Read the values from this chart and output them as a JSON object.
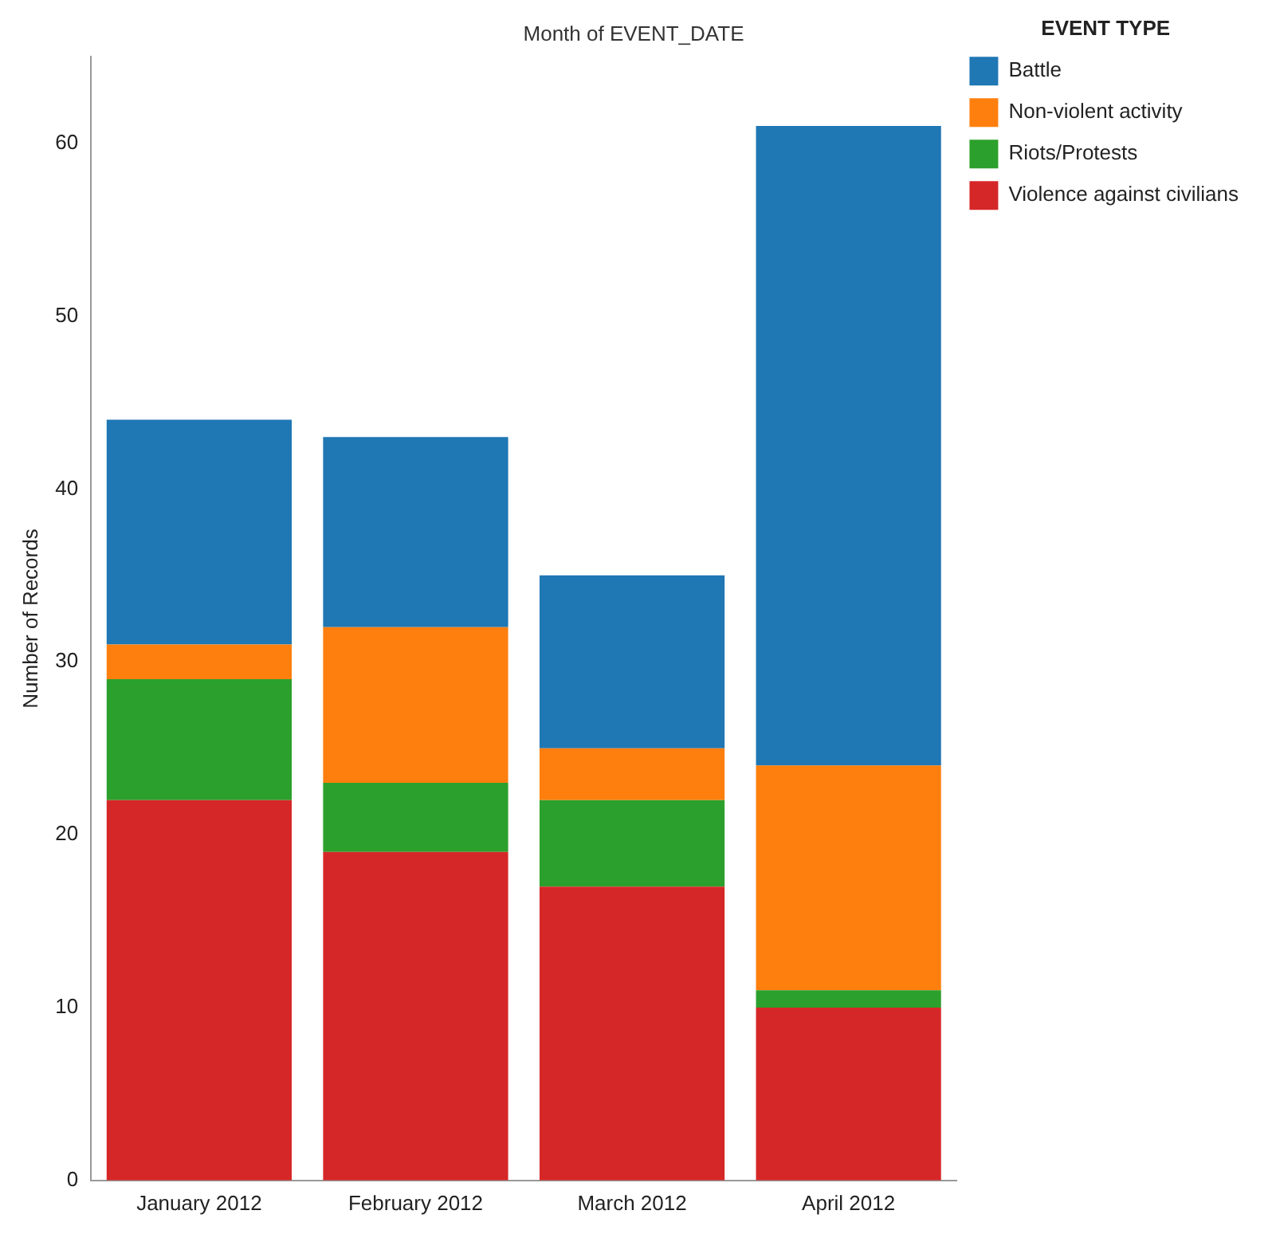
{
  "chart_data": {
    "type": "bar",
    "title": "Month of EVENT_DATE",
    "ylabel": "Number of Records",
    "legend_title": "EVENT TYPE",
    "categories": [
      "January 2012",
      "February 2012",
      "March 2012",
      "April 2012"
    ],
    "series": [
      {
        "name": "Violence against civilians",
        "color": "#d62728",
        "values": [
          22,
          19,
          17,
          10
        ]
      },
      {
        "name": "Riots/Protests",
        "color": "#2ca02c",
        "values": [
          7,
          4,
          5,
          1
        ]
      },
      {
        "name": "Non-violent activity",
        "color": "#ff7f0e",
        "values": [
          2,
          9,
          3,
          13
        ]
      },
      {
        "name": "Battle",
        "color": "#1f77b4",
        "values": [
          13,
          11,
          10,
          37
        ]
      }
    ],
    "stacked": true,
    "ylim": [
      0,
      65
    ],
    "yticks": [
      0,
      10,
      20,
      30,
      40,
      50,
      60
    ],
    "grid": false,
    "legend": "top right"
  }
}
